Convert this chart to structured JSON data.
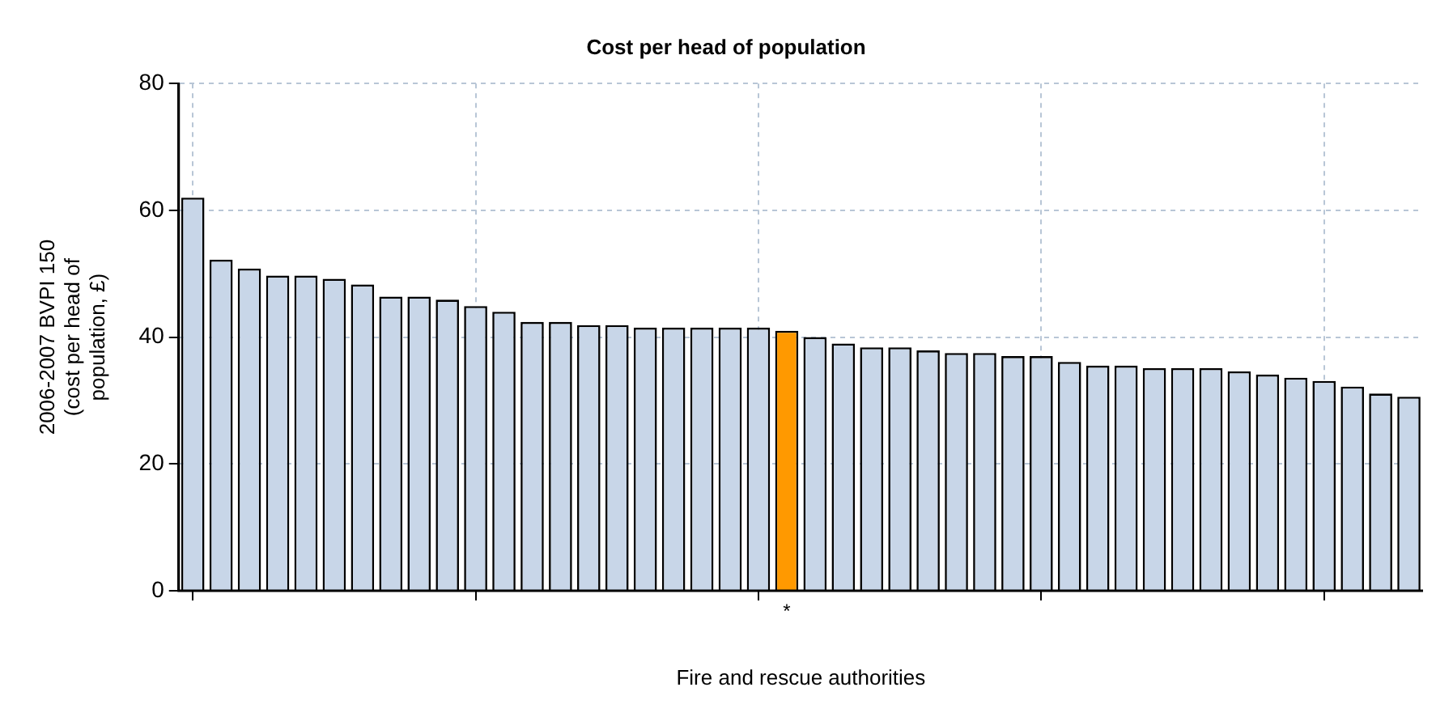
{
  "chart_data": {
    "type": "bar",
    "title": "Cost per head of population",
    "xlabel": "Fire and rescue authorities",
    "ylabel": "2006-2007 BVPI 150 (cost per head of population, £)",
    "categories": [
      null,
      null,
      null,
      null,
      null,
      null,
      null,
      null,
      null,
      null,
      null,
      null,
      null,
      null,
      null,
      null,
      null,
      null,
      null,
      null,
      null,
      "*",
      null,
      null,
      null,
      null,
      null,
      null,
      null,
      null,
      null,
      null,
      null,
      null,
      null,
      null,
      null,
      null,
      null,
      null,
      null,
      null,
      null,
      null
    ],
    "values": [
      62,
      52.2,
      50.8,
      49.7,
      49.7,
      49.2,
      48.3,
      46.4,
      46.4,
      45.9,
      44.9,
      44,
      42.4,
      42.4,
      41.9,
      41.9,
      41.5,
      41.5,
      41.5,
      41.5,
      41.5,
      41,
      40,
      39,
      38.4,
      38.4,
      37.9,
      37.5,
      37.5,
      37,
      37,
      36.1,
      35.5,
      35.5,
      35.1,
      35.1,
      35.1,
      34.6,
      34.1,
      33.6,
      33.1,
      32.2,
      31.1,
      30.6
    ],
    "colors": [
      "#c8d6e8",
      "#c8d6e8",
      "#c8d6e8",
      "#c8d6e8",
      "#c8d6e8",
      "#c8d6e8",
      "#c8d6e8",
      "#c8d6e8",
      "#c8d6e8",
      "#c8d6e8",
      "#c8d6e8",
      "#c8d6e8",
      "#c8d6e8",
      "#c8d6e8",
      "#c8d6e8",
      "#c8d6e8",
      "#c8d6e8",
      "#c8d6e8",
      "#c8d6e8",
      "#c8d6e8",
      "#c8d6e8",
      "#ff9900",
      "#c8d6e8",
      "#c8d6e8",
      "#c8d6e8",
      "#c8d6e8",
      "#c8d6e8",
      "#c8d6e8",
      "#c8d6e8",
      "#c8d6e8",
      "#c8d6e8",
      "#c8d6e8",
      "#c8d6e8",
      "#c8d6e8",
      "#c8d6e8",
      "#c8d6e8",
      "#c8d6e8",
      "#c8d6e8",
      "#c8d6e8",
      "#c8d6e8",
      "#c8d6e8",
      "#c8d6e8",
      "#c8d6e8",
      "#c8d6e8"
    ],
    "ylim": [
      0,
      80
    ],
    "yticks": [
      0,
      20,
      40,
      60,
      80
    ],
    "grid": true,
    "legend": false
  }
}
